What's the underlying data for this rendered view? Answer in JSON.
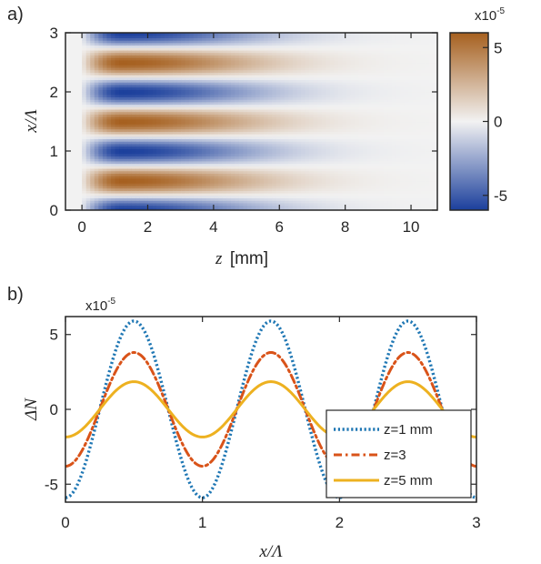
{
  "chart_data": [
    {
      "panel_label": "a)",
      "type": "heatmap",
      "xlabel_var": "z",
      "xlabel_unit": "[mm]",
      "ylabel": "x/Λ",
      "xlim": [
        -0.5,
        10.8
      ],
      "ylim": [
        0,
        3
      ],
      "xticks": [
        "0",
        "2",
        "4",
        "6",
        "8",
        "10"
      ],
      "yticks": [
        "0",
        "1",
        "2",
        "3"
      ],
      "field": {
        "expression": "A * cos(2*pi*x/Λ) * exp(-((z-1.2)/4.2)^2 for z>1.2, ramp-up from z=0)",
        "amplitude": -6e-05,
        "period_x": 1,
        "peak_z": 1.2,
        "decay_z": 4.2
      },
      "colorbar": {
        "multiplier_base": "x10",
        "multiplier_exp": "-5",
        "ticks": [
          "5",
          "0",
          "-5"
        ],
        "range": [
          -6,
          6
        ],
        "low_color": "#1b3f9c",
        "mid_color": "#f2f2f2",
        "high_color": "#a6601f"
      }
    },
    {
      "panel_label": "b)",
      "type": "line",
      "xlabel": "x/Λ",
      "ylabel": "ΔN",
      "multiplier_base": "x10",
      "multiplier_exp": "-5",
      "xlim": [
        0,
        3
      ],
      "ylim": [
        -6.2,
        6.2
      ],
      "xticks": [
        "0",
        "1",
        "2",
        "3"
      ],
      "yticks": [
        "5",
        "0",
        "-5"
      ],
      "series": [
        {
          "name": "z=1 mm",
          "amplitude": 5.9,
          "style": "dotted",
          "color": "#1f77b4"
        },
        {
          "name": "z=3",
          "amplitude": 3.8,
          "style": "dashdot",
          "color": "#d95319"
        },
        {
          "name": "z=5 mm",
          "amplitude": 1.85,
          "style": "solid",
          "color": "#edb120"
        }
      ],
      "function": "ΔN = -amplitude * cos(2*pi*x/Λ)"
    }
  ]
}
